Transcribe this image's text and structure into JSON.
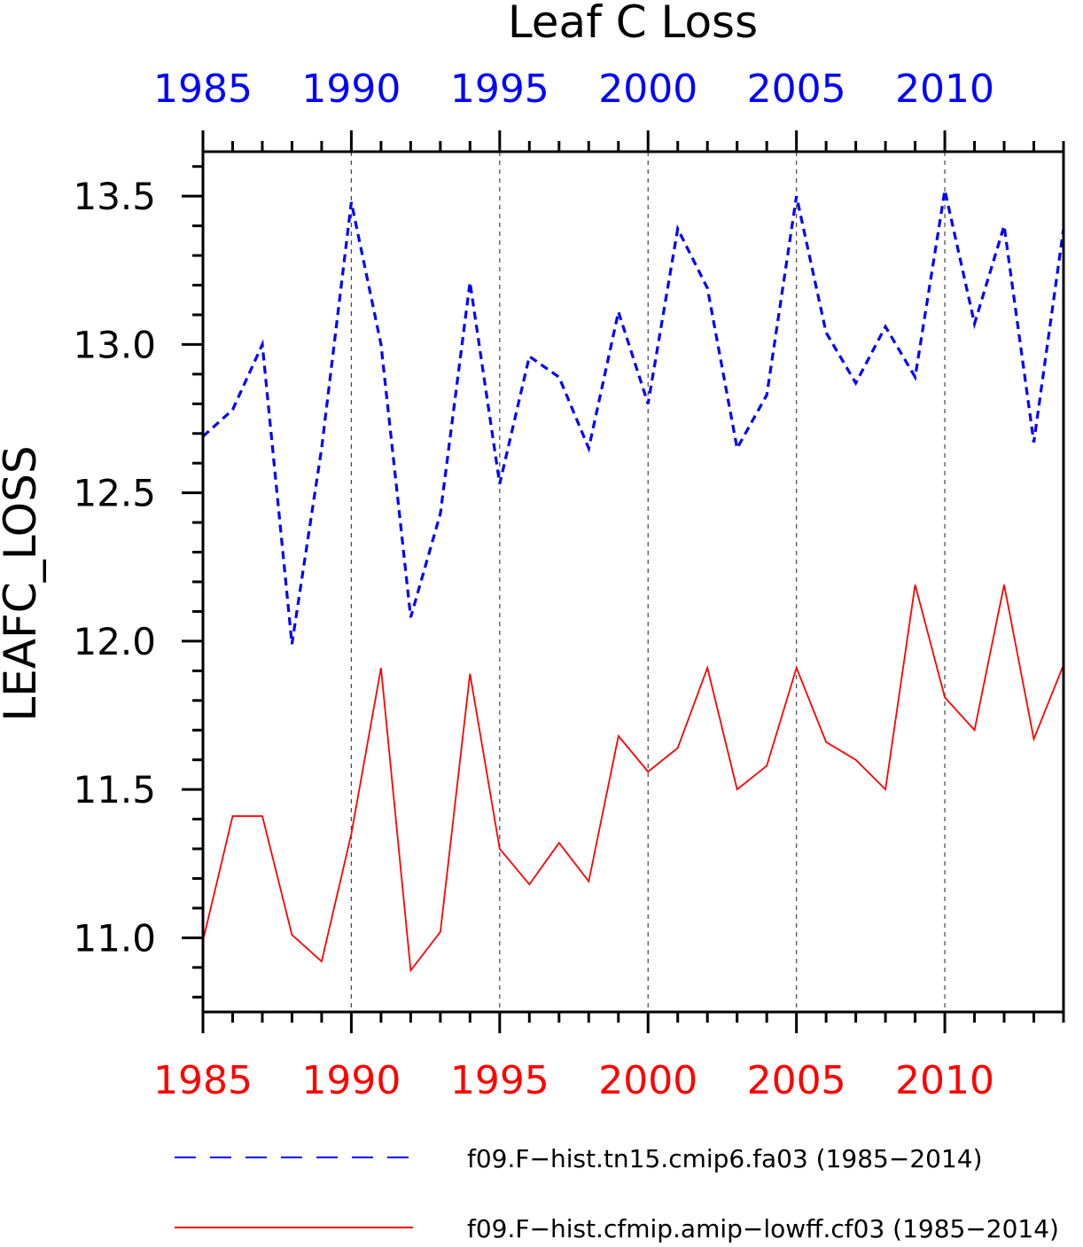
{
  "chart_data": {
    "type": "line",
    "title": "Leaf C Loss",
    "ylabel": "LEAFC_LOSS",
    "xlabel": "",
    "xlim": [
      1985,
      2014
    ],
    "ylim": [
      10.75,
      13.65
    ],
    "grid": "vertical dashed lines at major x ticks",
    "legend_position": "bottom",
    "x_ticks": [
      1985,
      1990,
      1995,
      2000,
      2005,
      2010
    ],
    "x_tick_labels": [
      "1985",
      "1990",
      "1995",
      "2000",
      "2005",
      "2010"
    ],
    "y_ticks": [
      11.0,
      11.5,
      12.0,
      12.5,
      13.0,
      13.5
    ],
    "y_tick_labels": [
      "11.0",
      "11.5",
      "12.0",
      "12.5",
      "13.0",
      "13.5"
    ],
    "top_axis_color": "#0000ff",
    "bottom_axis_color": "#ff0000",
    "x": [
      1985,
      1986,
      1987,
      1988,
      1989,
      1990,
      1991,
      1992,
      1993,
      1994,
      1995,
      1996,
      1997,
      1998,
      1999,
      2000,
      2001,
      2002,
      2003,
      2004,
      2005,
      2006,
      2007,
      2008,
      2009,
      2010,
      2011,
      2012,
      2013,
      2014
    ],
    "series": [
      {
        "name": "f09.F−hist.tn15.cmip6.fa03 (1985−2014)",
        "color": "#0000ff",
        "style": "dashed",
        "values": [
          12.69,
          12.78,
          13.0,
          11.99,
          12.65,
          13.48,
          13.0,
          12.08,
          12.43,
          13.21,
          12.53,
          12.96,
          12.89,
          12.65,
          13.11,
          12.8,
          13.39,
          13.19,
          12.65,
          12.83,
          13.5,
          13.04,
          12.87,
          13.06,
          12.89,
          13.52,
          13.07,
          13.4,
          12.67,
          13.39
        ]
      },
      {
        "name": "f09.F−hist.cfmip.amip−lowff.cf03 (1985−2014)",
        "color": "#ff0000",
        "style": "solid",
        "values": [
          10.99,
          11.41,
          11.41,
          11.01,
          10.92,
          11.35,
          11.91,
          10.89,
          11.02,
          11.89,
          11.3,
          11.18,
          11.32,
          11.19,
          11.68,
          11.56,
          11.64,
          11.91,
          11.5,
          11.58,
          11.91,
          11.66,
          11.6,
          11.5,
          12.19,
          11.81,
          11.7,
          12.19,
          11.67,
          11.92
        ]
      }
    ]
  }
}
